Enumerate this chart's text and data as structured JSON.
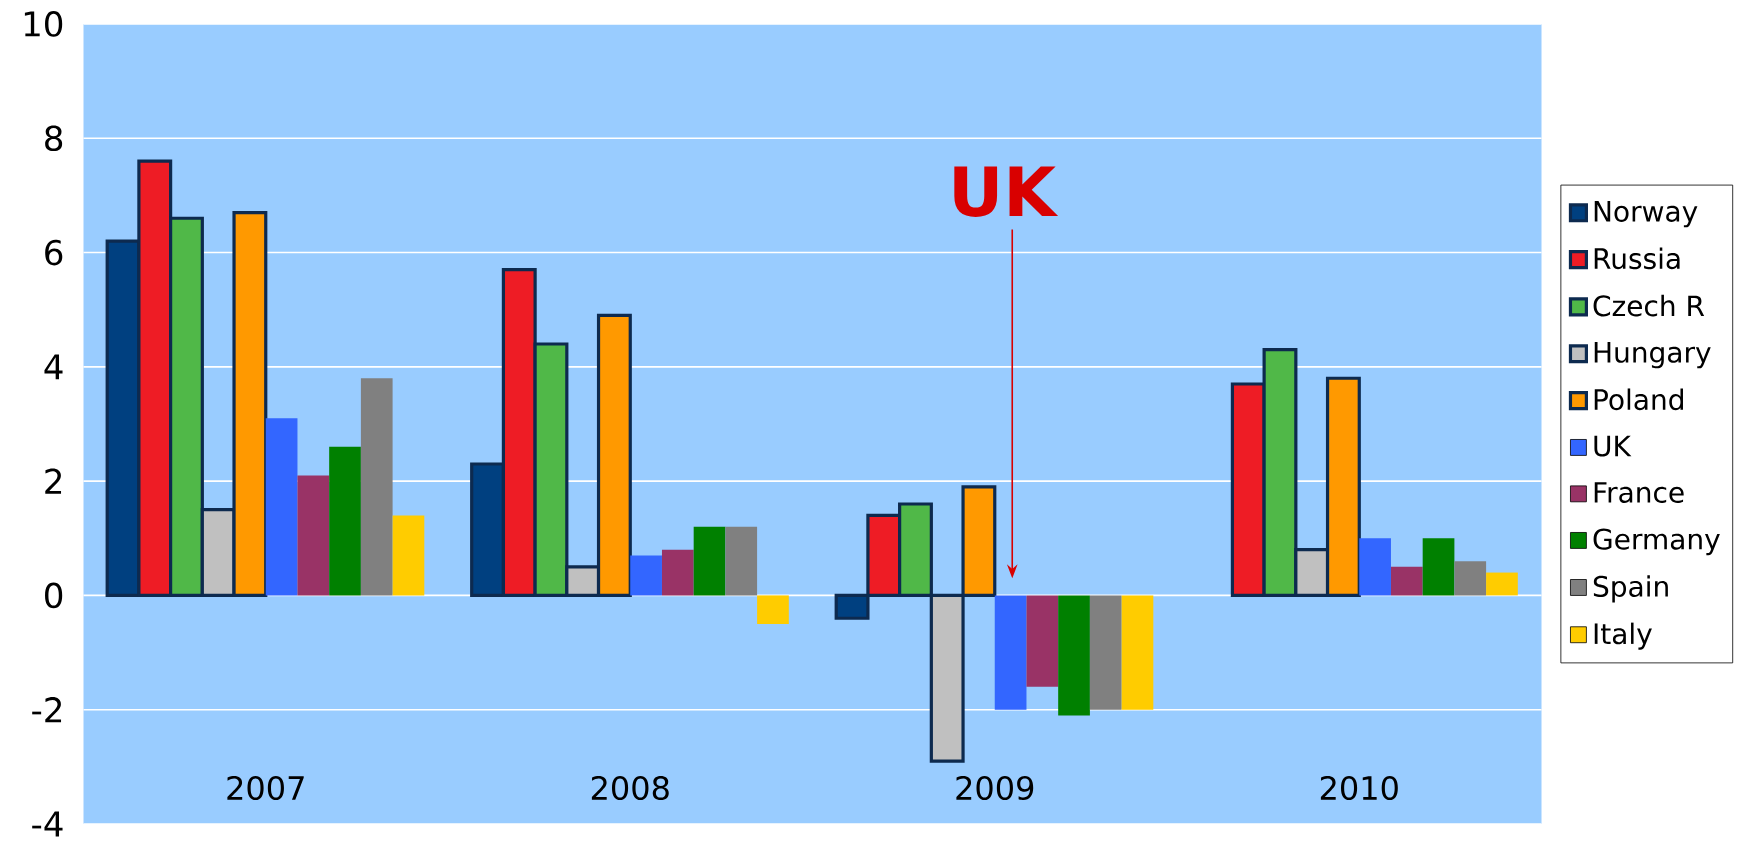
{
  "chart_data": {
    "type": "bar",
    "categories": [
      "2007",
      "2008",
      "2009",
      "2010"
    ],
    "series": [
      {
        "name": "Norway",
        "color": "#004080",
        "values": [
          6.2,
          2.3,
          -0.4,
          null
        ]
      },
      {
        "name": "Russia",
        "color": "#ee1c25",
        "values": [
          7.6,
          5.7,
          1.4,
          3.7
        ]
      },
      {
        "name": "Czech R",
        "color": "#50b848",
        "values": [
          6.6,
          4.4,
          1.6,
          4.3
        ]
      },
      {
        "name": "Hungary",
        "color": "#c0c0c0",
        "values": [
          1.5,
          0.5,
          -2.9,
          0.8
        ]
      },
      {
        "name": "Poland",
        "color": "#ff9900",
        "values": [
          6.7,
          4.9,
          1.9,
          3.8
        ]
      },
      {
        "name": "UK",
        "color": "#3366ff",
        "values": [
          3.1,
          0.7,
          -2.0,
          1.0
        ]
      },
      {
        "name": "France",
        "color": "#993366",
        "values": [
          2.1,
          0.8,
          -1.6,
          0.5
        ]
      },
      {
        "name": "Germany",
        "color": "#008000",
        "values": [
          2.6,
          1.2,
          -2.1,
          1.0
        ]
      },
      {
        "name": "Spain",
        "color": "#808080",
        "values": [
          3.8,
          1.2,
          -2.0,
          0.6
        ]
      },
      {
        "name": "Italy",
        "color": "#ffcc00",
        "values": [
          1.4,
          -0.5,
          -2.0,
          0.4
        ]
      }
    ],
    "ylim": [
      -4,
      10
    ],
    "yticks": [
      -4,
      -2,
      0,
      2,
      4,
      6,
      8,
      10
    ],
    "grid": "y",
    "legend": "right",
    "annotations": [
      "UK"
    ]
  }
}
